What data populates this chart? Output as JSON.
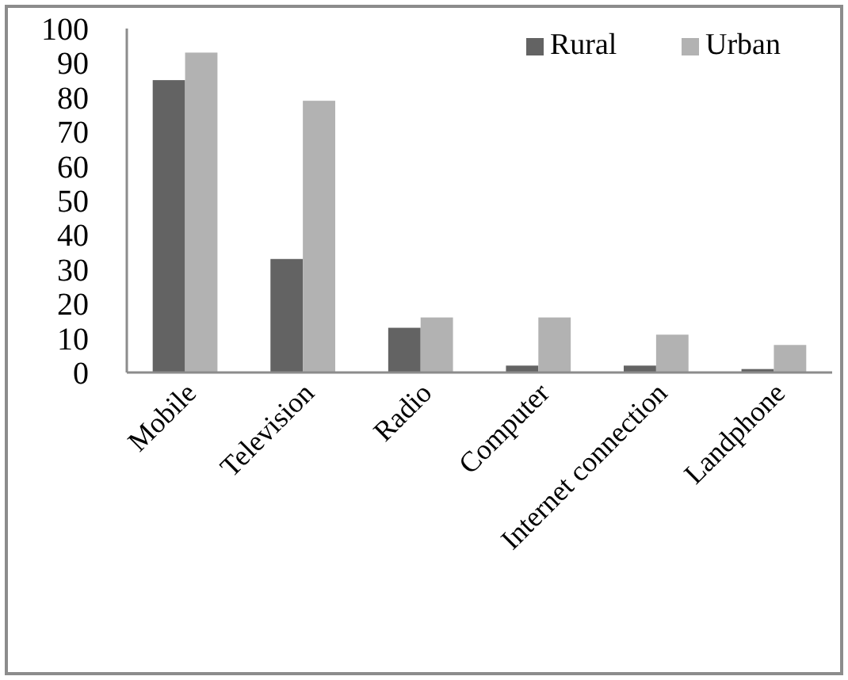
{
  "chart_data": {
    "type": "bar",
    "categories": [
      "Mobile",
      "Television",
      "Radio",
      "Computer",
      "Internet connection",
      "Landphone"
    ],
    "series": [
      {
        "name": "Rural",
        "color": "#636363",
        "values": [
          85,
          33,
          13,
          2,
          2,
          1
        ]
      },
      {
        "name": "Urban",
        "color": "#b2b2b2",
        "values": [
          93,
          79,
          16,
          16,
          11,
          8
        ]
      }
    ],
    "ylim": [
      0,
      100
    ],
    "yticks": [
      0,
      10,
      20,
      30,
      40,
      50,
      60,
      70,
      80,
      90,
      100
    ],
    "legend": "top right",
    "grid": false
  }
}
